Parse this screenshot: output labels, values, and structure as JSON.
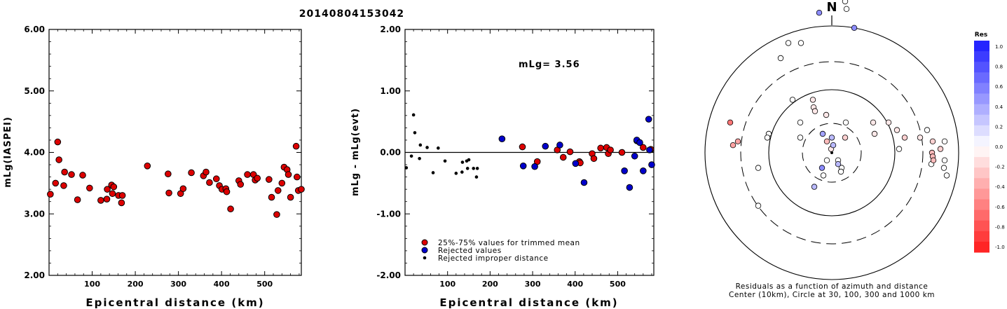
{
  "title": "20140804153042",
  "chart_data": [
    {
      "type": "scatter",
      "xlabel": "Epicentral distance (km)",
      "ylabel": "mLg(IASPEI)",
      "xlim": [
        0,
        585
      ],
      "ylim": [
        2.0,
        6.0
      ],
      "xticks": [
        "100",
        "200",
        "300",
        "400",
        "500"
      ],
      "yticks": [
        "2.00",
        "3.00",
        "4.00",
        "5.00",
        "6.00"
      ],
      "series": [
        {
          "color": "#dd0000",
          "points": [
            [
              3,
              3.32
            ],
            [
              15,
              3.5
            ],
            [
              20,
              4.17
            ],
            [
              23,
              3.88
            ],
            [
              34,
              3.46
            ],
            [
              36,
              3.68
            ],
            [
              52,
              3.64
            ],
            [
              66,
              3.23
            ],
            [
              78,
              3.63
            ],
            [
              94,
              3.42
            ],
            [
              120,
              3.22
            ],
            [
              134,
              3.24
            ],
            [
              135,
              3.4
            ],
            [
              145,
              3.47
            ],
            [
              147,
              3.33
            ],
            [
              150,
              3.44
            ],
            [
              161,
              3.3
            ],
            [
              168,
              3.18
            ],
            [
              170,
              3.3
            ],
            [
              228,
              3.78
            ],
            [
              276,
              3.65
            ],
            [
              278,
              3.34
            ],
            [
              305,
              3.33
            ],
            [
              311,
              3.41
            ],
            [
              330,
              3.67
            ],
            [
              358,
              3.62
            ],
            [
              364,
              3.68
            ],
            [
              372,
              3.51
            ],
            [
              388,
              3.57
            ],
            [
              395,
              3.46
            ],
            [
              401,
              3.4
            ],
            [
              410,
              3.41
            ],
            [
              412,
              3.36
            ],
            [
              421,
              3.08
            ],
            [
              440,
              3.54
            ],
            [
              444,
              3.48
            ],
            [
              460,
              3.64
            ],
            [
              474,
              3.64
            ],
            [
              478,
              3.55
            ],
            [
              483,
              3.58
            ],
            [
              510,
              3.56
            ],
            [
              516,
              3.27
            ],
            [
              528,
              2.99
            ],
            [
              531,
              3.38
            ],
            [
              540,
              3.5
            ],
            [
              545,
              3.76
            ],
            [
              552,
              3.72
            ],
            [
              555,
              3.64
            ],
            [
              560,
              3.27
            ],
            [
              573,
              4.1
            ],
            [
              575,
              3.6
            ],
            [
              578,
              3.38
            ],
            [
              585,
              3.4
            ]
          ]
        }
      ]
    },
    {
      "type": "scatter",
      "xlabel": "Epicentral distance (km)",
      "ylabel": "mLg - mLg(evt)",
      "annotation": "mLg= 3.56",
      "xlim": [
        0,
        585
      ],
      "ylim": [
        -2.0,
        2.0
      ],
      "xticks": [
        "100",
        "200",
        "300",
        "400",
        "500"
      ],
      "yticks": [
        "-2.00",
        "-1.00",
        "0.00",
        "1.00",
        "2.00"
      ],
      "legend": [
        "25%-75% values for trimmed mean",
        "Rejected values",
        "Rejected improper distance"
      ],
      "series": [
        {
          "name": "25%-75% values for trimmed mean",
          "color": "#dd0000",
          "points": [
            [
              276,
              0.09
            ],
            [
              311,
              -0.15
            ],
            [
              358,
              0.04
            ],
            [
              372,
              -0.08
            ],
            [
              388,
              0.01
            ],
            [
              410,
              -0.15
            ],
            [
              412,
              -0.17
            ],
            [
              440,
              -0.02
            ],
            [
              444,
              -0.1
            ],
            [
              460,
              0.07
            ],
            [
              474,
              0.08
            ],
            [
              478,
              -0.02
            ],
            [
              483,
              0.04
            ],
            [
              510,
              0.0
            ],
            [
              545,
              0.19
            ],
            [
              560,
              0.08
            ],
            [
              578,
              0.05
            ]
          ]
        },
        {
          "name": "Rejected values",
          "color": "#0000cc",
          "points": [
            [
              228,
              0.22
            ],
            [
              278,
              -0.22
            ],
            [
              305,
              -0.23
            ],
            [
              330,
              0.1
            ],
            [
              364,
              0.12
            ],
            [
              401,
              -0.18
            ],
            [
              421,
              -0.49
            ],
            [
              516,
              -0.3
            ],
            [
              528,
              -0.57
            ],
            [
              540,
              -0.06
            ],
            [
              545,
              0.2
            ],
            [
              552,
              0.16
            ],
            [
              560,
              -0.3
            ],
            [
              573,
              0.54
            ],
            [
              575,
              0.04
            ],
            [
              580,
              -0.2
            ]
          ]
        },
        {
          "name": "Rejected improper distance",
          "color": "#000000",
          "points": [
            [
              3,
              -0.25
            ],
            [
              15,
              -0.06
            ],
            [
              20,
              0.61
            ],
            [
              23,
              0.32
            ],
            [
              34,
              -0.1
            ],
            [
              36,
              0.12
            ],
            [
              52,
              0.08
            ],
            [
              66,
              -0.33
            ],
            [
              78,
              0.07
            ],
            [
              94,
              -0.14
            ],
            [
              120,
              -0.34
            ],
            [
              134,
              -0.32
            ],
            [
              135,
              -0.16
            ],
            [
              145,
              -0.14
            ],
            [
              147,
              -0.26
            ],
            [
              150,
              -0.12
            ],
            [
              161,
              -0.26
            ],
            [
              168,
              -0.4
            ],
            [
              170,
              -0.26
            ]
          ]
        }
      ]
    },
    {
      "type": "scatter",
      "polar": true,
      "north_label": "N",
      "caption1": "Residuals as a function of azimuth and distance",
      "caption2": "Center (10km), Circle at 30, 100, 300 and 1000 km",
      "colorbar_title": "Res",
      "colorbar_ticks": [
        "1.0",
        "0.8",
        "0.6",
        "0.4",
        "0.2",
        "0.0",
        "-0.2",
        "-0.4",
        "-0.6",
        "-0.8",
        "-1.0"
      ],
      "points": [
        {
          "az": 0,
          "r": -0.8,
          "res": 0.3
        },
        {
          "az": -5,
          "r": -0.9,
          "res": 0.2
        },
        {
          "az": 190,
          "r": -0.85,
          "res": 0.3
        },
        {
          "az": -10,
          "r": -1.35,
          "res": 0.2
        },
        {
          "az": 150,
          "r": -0.7,
          "res": -0.2
        },
        {
          "az": 220,
          "r": -0.55,
          "res": 0.0
        }
      ]
    }
  ]
}
